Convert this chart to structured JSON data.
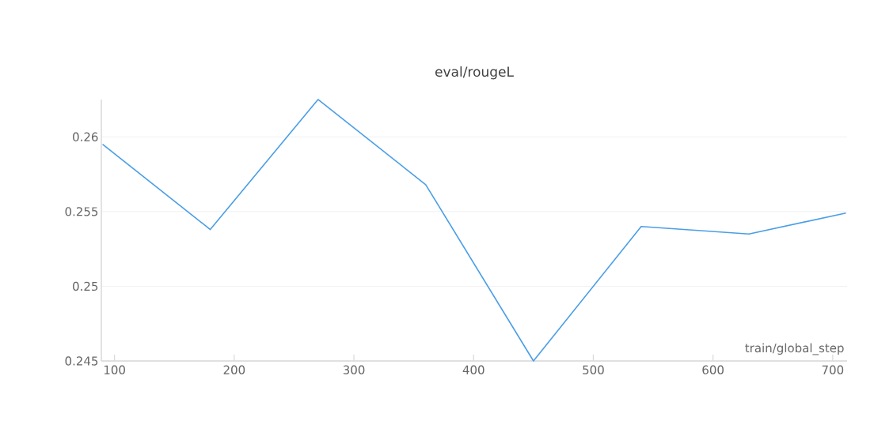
{
  "chart_data": {
    "type": "line",
    "title": "eval/rougeL",
    "xlabel": "train/global_step",
    "x": [
      90,
      180,
      270,
      360,
      450,
      540,
      630,
      711
    ],
    "series": [
      {
        "color": "#4a9ee6",
        "values": [
          0.2595,
          0.2538,
          0.2625,
          0.2568,
          0.245,
          0.254,
          0.2535,
          0.2549
        ]
      }
    ],
    "xlim": [
      89,
      712
    ],
    "ylim": [
      0.245,
      0.2625
    ],
    "xticks": [
      100,
      200,
      300,
      400,
      500,
      600,
      700
    ],
    "yticks": [
      {
        "value": 0.245,
        "label": "0.245"
      },
      {
        "value": 0.25,
        "label": "0.25"
      },
      {
        "value": 0.255,
        "label": "0.255"
      },
      {
        "value": 0.26,
        "label": "0.26"
      }
    ],
    "grid": "y",
    "line_style": "solid"
  }
}
